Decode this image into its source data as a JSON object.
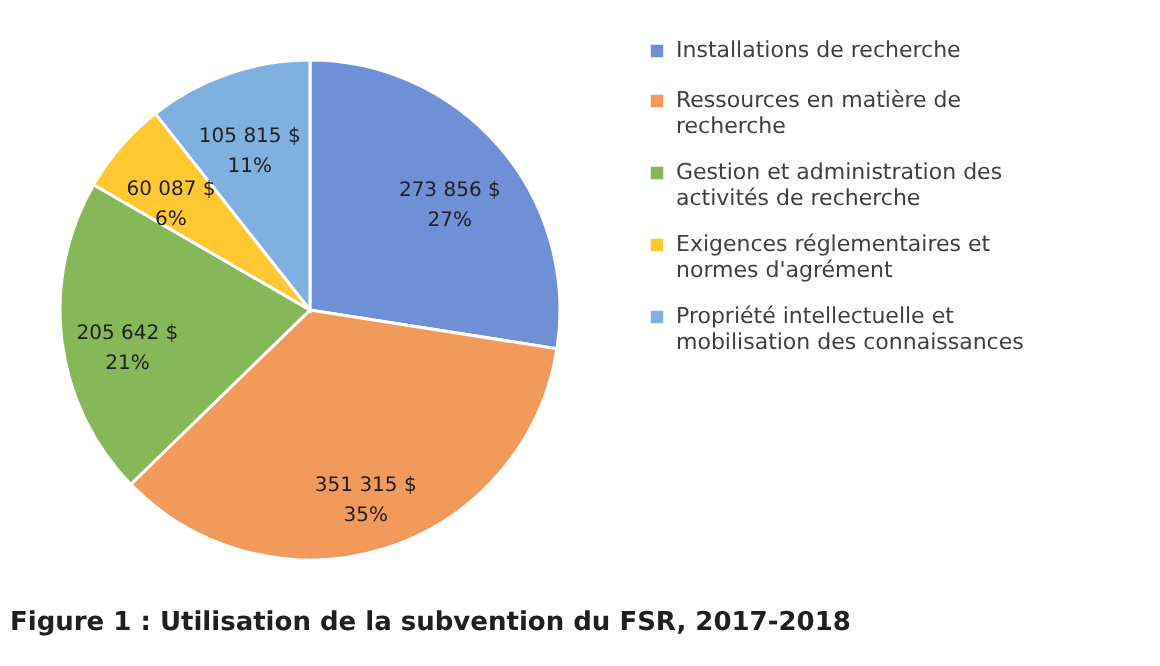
{
  "chart_data": {
    "type": "pie",
    "title": "Figure 1 : Utilisation de la subvention du FSR, 2017-2018",
    "categories": [
      "Installations de recherche",
      "Ressources en matière de recherche",
      "Gestion et administration des activités de recherche",
      "Exigences réglementaires et normes d'agrément",
      "Propriété intellectuelle et mobilisation des connaissances"
    ],
    "values": [
      273856,
      351315,
      205642,
      60087,
      105815
    ],
    "value_labels": [
      "273 856 $\n27%",
      "351 315 $\n35%",
      "205 642 $\n21%",
      "60 087 $\n6%",
      "105 815 $\n11%"
    ],
    "colors": [
      "#6f8fd6",
      "#f29a5c",
      "#86b85a",
      "#ffc830",
      "#80b0e0"
    ],
    "legend": "right"
  }
}
